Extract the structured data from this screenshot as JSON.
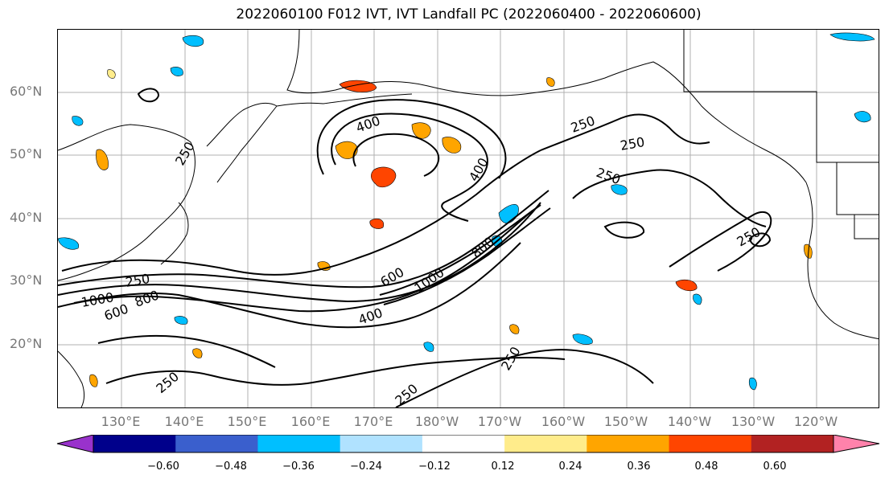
{
  "title": "2022060100 F012 IVT, IVT Landfall PC (2022060400 - 2022060600)",
  "map": {
    "lat_labels": [
      "60°N",
      "50°N",
      "40°N",
      "30°N",
      "20°N"
    ],
    "lon_labels": [
      "130°E",
      "140°E",
      "150°E",
      "160°E",
      "170°E",
      "180°W",
      "170°W",
      "160°W",
      "150°W",
      "140°W",
      "130°W",
      "120°W"
    ],
    "contour_labels": [
      "400",
      "250",
      "250",
      "250",
      "400",
      "250",
      "250",
      "1000",
      "600",
      "800",
      "400",
      "600",
      "1000",
      "800",
      "250",
      "250",
      "250",
      "250"
    ],
    "contour_color": "#000000"
  },
  "colorbar": {
    "colors": [
      "#9932cc",
      "#00008b",
      "#3a5fcd",
      "#00bfff",
      "#b0e2ff",
      "#ffffff",
      "#ffec8b",
      "#ffa500",
      "#ff4500",
      "#b22222",
      "#ff82ab"
    ],
    "ticks": [
      "−0.60",
      "−0.48",
      "−0.36",
      "−0.24",
      "−0.12",
      "0.12",
      "0.24",
      "0.36",
      "0.48",
      "0.60"
    ]
  },
  "colors": {
    "land_outline": "#000000",
    "grid": "#b0b0b0",
    "axis_label": "#777777"
  }
}
